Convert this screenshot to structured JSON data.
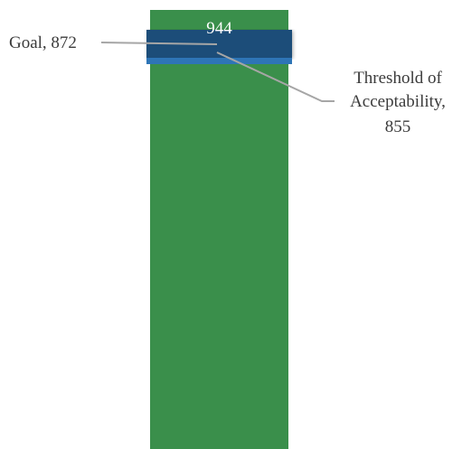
{
  "chart_data": {
    "type": "bar",
    "categories": [
      ""
    ],
    "values": [
      944
    ],
    "ylim": [
      0,
      1000
    ],
    "grid": false,
    "legend": "none",
    "data_label": "944",
    "bands": [
      {
        "name": "Goal",
        "value": 872
      },
      {
        "name": "Threshold of Acceptability",
        "value": 855
      }
    ],
    "annotations": {
      "goal_text": "Goal, 872",
      "threshold_lines": [
        "Threshold of",
        "Acceptability,",
        "855"
      ]
    },
    "colors": {
      "bar": "#3a8f4b",
      "goal_band": "#1f4e79",
      "threshold_band": "#2e75b6",
      "leader_line": "#a6a6a6"
    }
  }
}
